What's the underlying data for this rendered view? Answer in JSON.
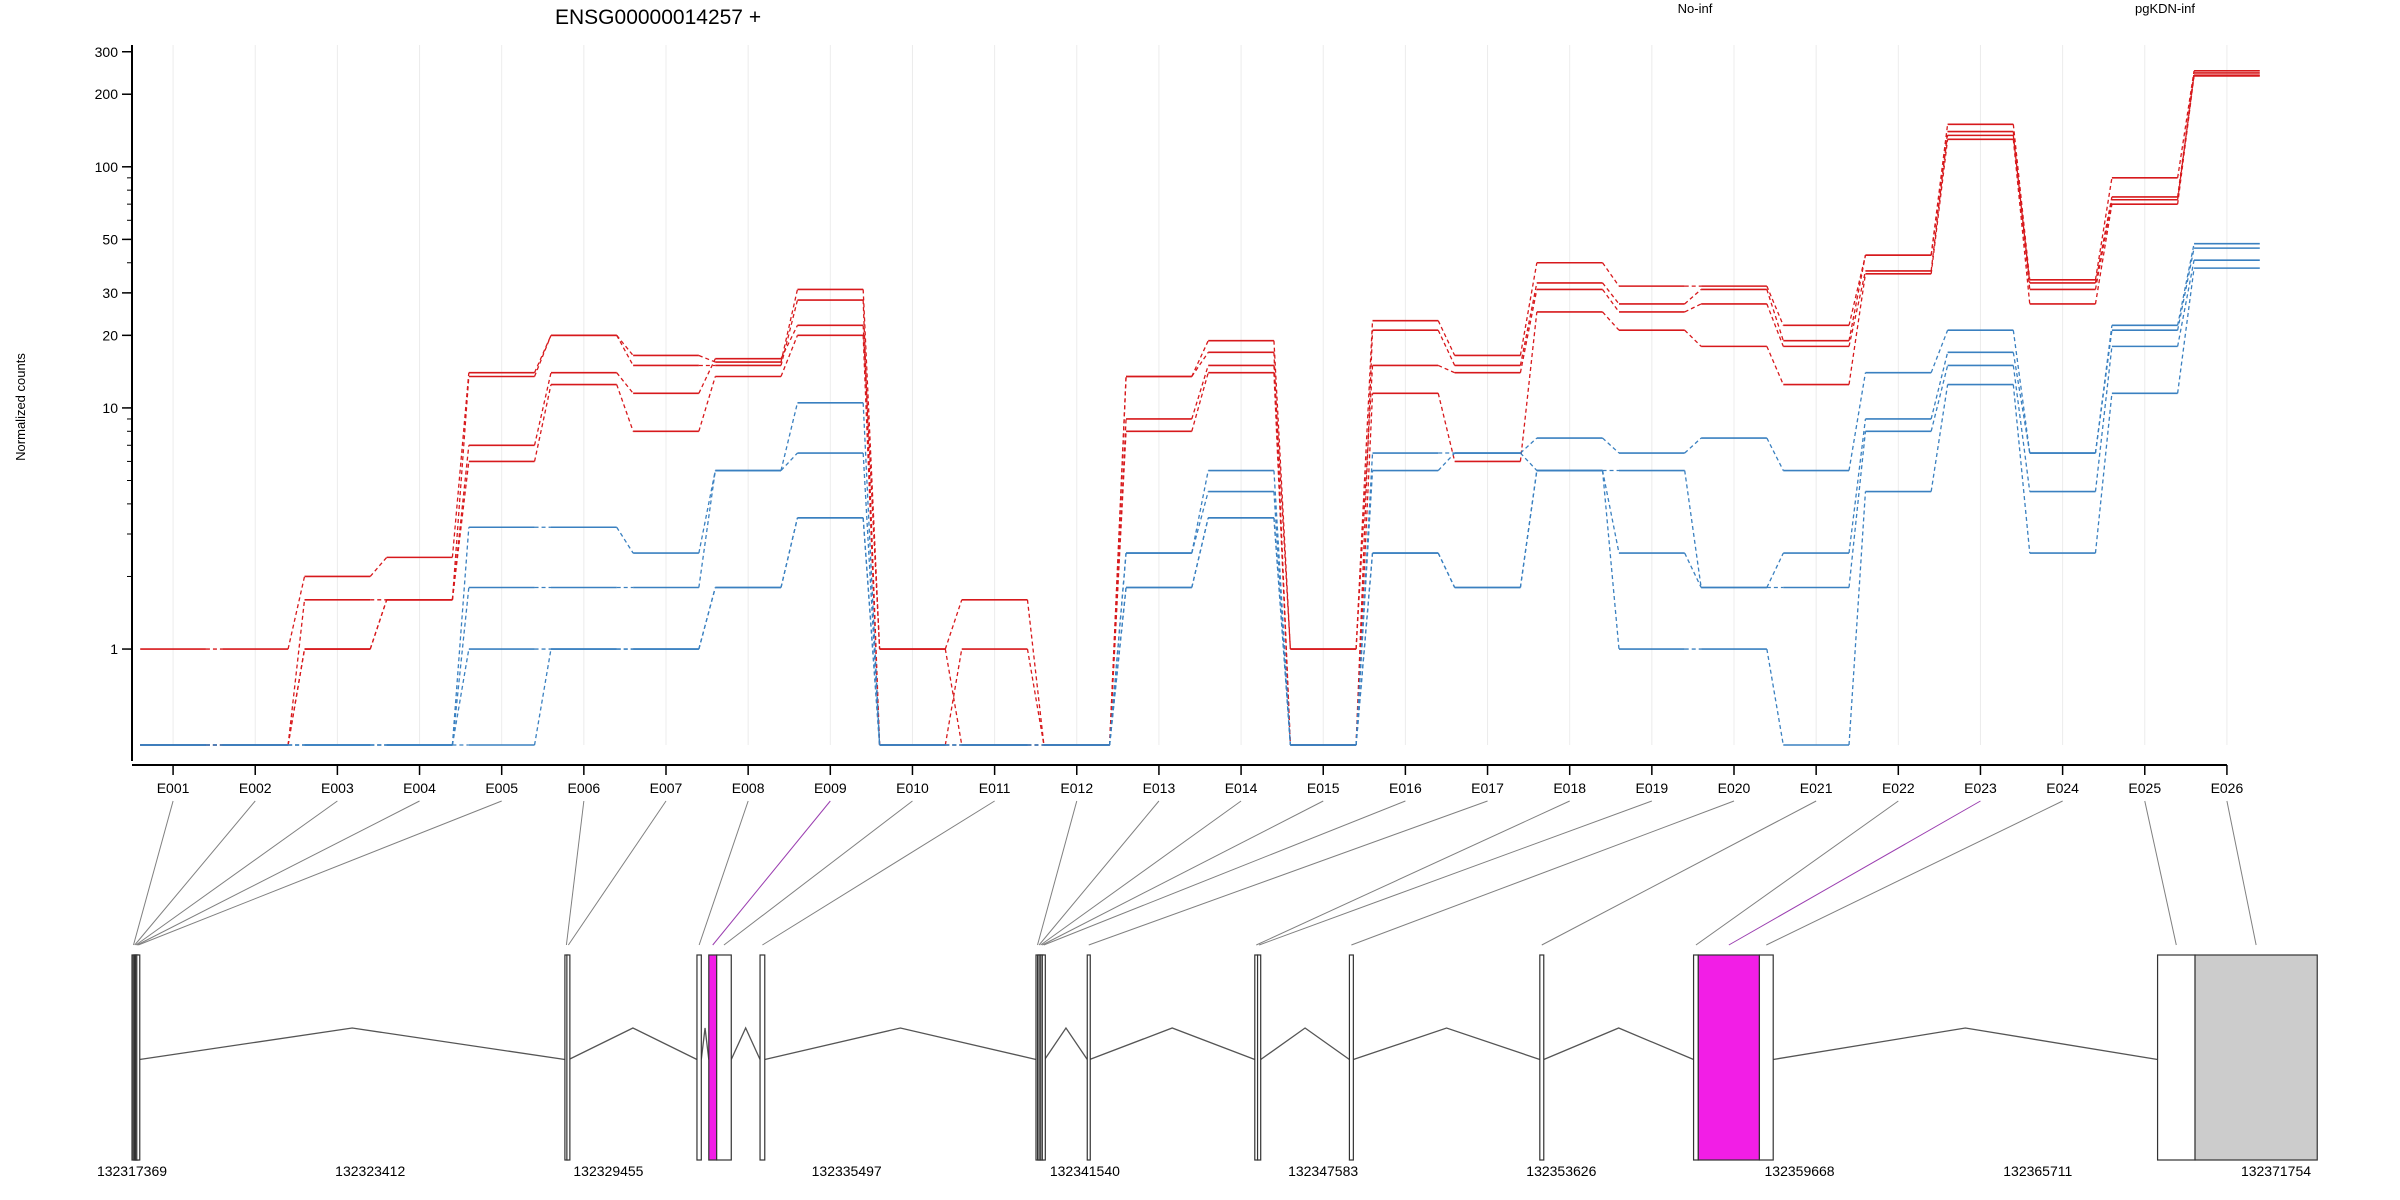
{
  "header": {
    "gene_title": "ENSG00000014257 +",
    "legend": [
      {
        "label": "No-inf",
        "color": "#d7191c"
      },
      {
        "label": "pgKDN-inf",
        "color": "#2c7bb6"
      }
    ]
  },
  "colors": {
    "no_inf": "#d7191c",
    "pgkdn_inf": "#3a80c0",
    "highlight_exon": "#f21ee6",
    "other_exon": "#cccccc",
    "connector": "#808080",
    "highlight_connector": "#9b3fb0"
  },
  "chart_data": {
    "type": "line",
    "title": "ENSG00000014257 +",
    "ylabel": "Normalized counts",
    "xlabel": "",
    "y_scale": "log",
    "y_ticks": [
      1,
      10,
      20,
      30,
      50,
      100,
      200,
      300
    ],
    "ylim": [
      0.4,
      320
    ],
    "grid": "vertical-light",
    "categories": [
      "E001",
      "E002",
      "E003",
      "E004",
      "E005",
      "E006",
      "E007",
      "E008",
      "E009",
      "E010",
      "E011",
      "E012",
      "E013",
      "E014",
      "E015",
      "E016",
      "E017",
      "E018",
      "E019",
      "E020",
      "E021",
      "E022",
      "E023",
      "E024",
      "E025",
      "E026"
    ],
    "series": [
      {
        "group": "No-inf",
        "values": [
          1,
          1,
          2.0,
          2.4,
          14,
          20,
          16.5,
          15.5,
          31,
          1,
          1.6,
          0.4,
          13.5,
          19,
          1,
          23,
          16.5,
          40,
          32,
          32,
          22,
          43,
          150,
          34,
          90,
          250
        ]
      },
      {
        "group": "No-inf",
        "values": [
          0.4,
          0.4,
          1.6,
          1.6,
          13.5,
          20,
          15,
          15,
          28,
          0.4,
          1,
          0.4,
          13.5,
          17,
          0.4,
          21,
          15,
          33,
          27,
          31,
          19,
          43,
          135,
          33,
          75,
          245
        ]
      },
      {
        "group": "No-inf",
        "values": [
          0.4,
          0.4,
          1,
          1.6,
          7,
          14,
          11.5,
          16,
          22,
          1,
          0.4,
          0.4,
          9,
          15,
          1,
          15,
          14,
          31,
          25,
          27,
          18,
          37,
          140,
          31,
          73,
          240
        ]
      },
      {
        "group": "No-inf",
        "values": [
          0.4,
          0.4,
          1,
          1.6,
          6,
          12.5,
          8,
          13.5,
          20,
          0.4,
          0.4,
          0.4,
          8,
          14,
          0.4,
          11.5,
          6,
          25,
          21,
          18,
          12.5,
          36,
          130,
          27,
          70,
          238
        ]
      },
      {
        "group": "pgKDN-inf",
        "values": [
          0.4,
          0.4,
          0.4,
          0.4,
          3.2,
          3.2,
          2.5,
          5.5,
          10.5,
          0.4,
          0.4,
          0.4,
          2.5,
          5.5,
          0.4,
          6.5,
          6.5,
          7.5,
          6.5,
          7.5,
          5.5,
          14,
          21,
          6.5,
          22,
          48
        ]
      },
      {
        "group": "pgKDN-inf",
        "values": [
          0.4,
          0.4,
          0.4,
          0.4,
          1.8,
          1.8,
          1.8,
          5.5,
          6.5,
          0.4,
          0.4,
          0.4,
          2.5,
          4.5,
          0.4,
          5.5,
          6.5,
          5.5,
          5.5,
          1.8,
          2.5,
          9,
          17,
          6.5,
          21,
          46
        ]
      },
      {
        "group": "pgKDN-inf",
        "values": [
          0.4,
          0.4,
          0.4,
          0.4,
          1,
          1,
          1,
          1.8,
          3.5,
          0.4,
          0.4,
          0.4,
          1.8,
          3.5,
          0.4,
          2.5,
          1.8,
          5.5,
          2.5,
          1.8,
          1.8,
          8,
          15,
          4.5,
          18,
          41
        ]
      },
      {
        "group": "pgKDN-inf",
        "values": [
          0.4,
          0.4,
          0.4,
          0.4,
          0.4,
          1,
          1,
          1.8,
          3.5,
          0.4,
          0.4,
          0.4,
          1.8,
          3.5,
          0.4,
          2.5,
          1.8,
          5.5,
          1,
          1,
          0.4,
          4.5,
          12.5,
          2.5,
          11.5,
          38
        ]
      }
    ],
    "highlighted_exons": [
      "E009",
      "E023"
    ],
    "genomic_ticks": [
      "132317369",
      "132323412",
      "132329455",
      "132335497",
      "132341540",
      "132347583",
      "132353626",
      "132359668",
      "132365711",
      "132371754"
    ],
    "genomic_range": [
      132317369,
      132371754
    ],
    "exons": [
      {
        "id": "E001",
        "start": 132317369,
        "end": 132317400
      },
      {
        "id": "E002",
        "start": 132317400,
        "end": 132317430
      },
      {
        "id": "E003",
        "start": 132317430,
        "end": 132317460
      },
      {
        "id": "E004",
        "start": 132317460,
        "end": 132317490
      },
      {
        "id": "E005",
        "start": 132317490,
        "end": 132317560
      },
      {
        "id": "E006",
        "start": 132328350,
        "end": 132328400
      },
      {
        "id": "E007",
        "start": 132328400,
        "end": 132328450
      },
      {
        "id": "E008",
        "start": 132331700,
        "end": 132331810
      },
      {
        "id": "E009",
        "start": 132332000,
        "end": 132332200
      },
      {
        "id": "E010",
        "start": 132332200,
        "end": 132332570
      },
      {
        "id": "E011",
        "start": 132333300,
        "end": 132333420
      },
      {
        "id": "E012",
        "start": 132340300,
        "end": 132340340
      },
      {
        "id": "E013",
        "start": 132340340,
        "end": 132340380
      },
      {
        "id": "E014",
        "start": 132340380,
        "end": 132340420
      },
      {
        "id": "E015",
        "start": 132340420,
        "end": 132340460
      },
      {
        "id": "E016",
        "start": 132340460,
        "end": 132340520
      },
      {
        "id": "E017",
        "start": 132341600,
        "end": 132341660
      },
      {
        "id": "E018",
        "start": 132345850,
        "end": 132345920
      },
      {
        "id": "E019",
        "start": 132345920,
        "end": 132346000
      },
      {
        "id": "E020",
        "start": 132348250,
        "end": 132348350
      },
      {
        "id": "E021",
        "start": 132353080,
        "end": 132353180
      },
      {
        "id": "E022",
        "start": 132356980,
        "end": 132357100
      },
      {
        "id": "E023",
        "start": 132357100,
        "end": 132358650
      },
      {
        "id": "E024",
        "start": 132358650,
        "end": 132359000
      },
      {
        "id": "E025",
        "start": 132368750,
        "end": 132369700
      },
      {
        "id": "E026",
        "start": 132369700,
        "end": 132372800
      }
    ],
    "introns": [
      [
        132317560,
        132328350
      ],
      [
        132328450,
        132331700
      ],
      [
        132331810,
        132332000
      ],
      [
        132332570,
        132333300
      ],
      [
        132333420,
        132340300
      ],
      [
        132340520,
        132341600
      ],
      [
        132341660,
        132345850
      ],
      [
        132346000,
        132348250
      ],
      [
        132348350,
        132353080
      ],
      [
        132353180,
        132356980
      ],
      [
        132359000,
        132368750
      ]
    ]
  }
}
